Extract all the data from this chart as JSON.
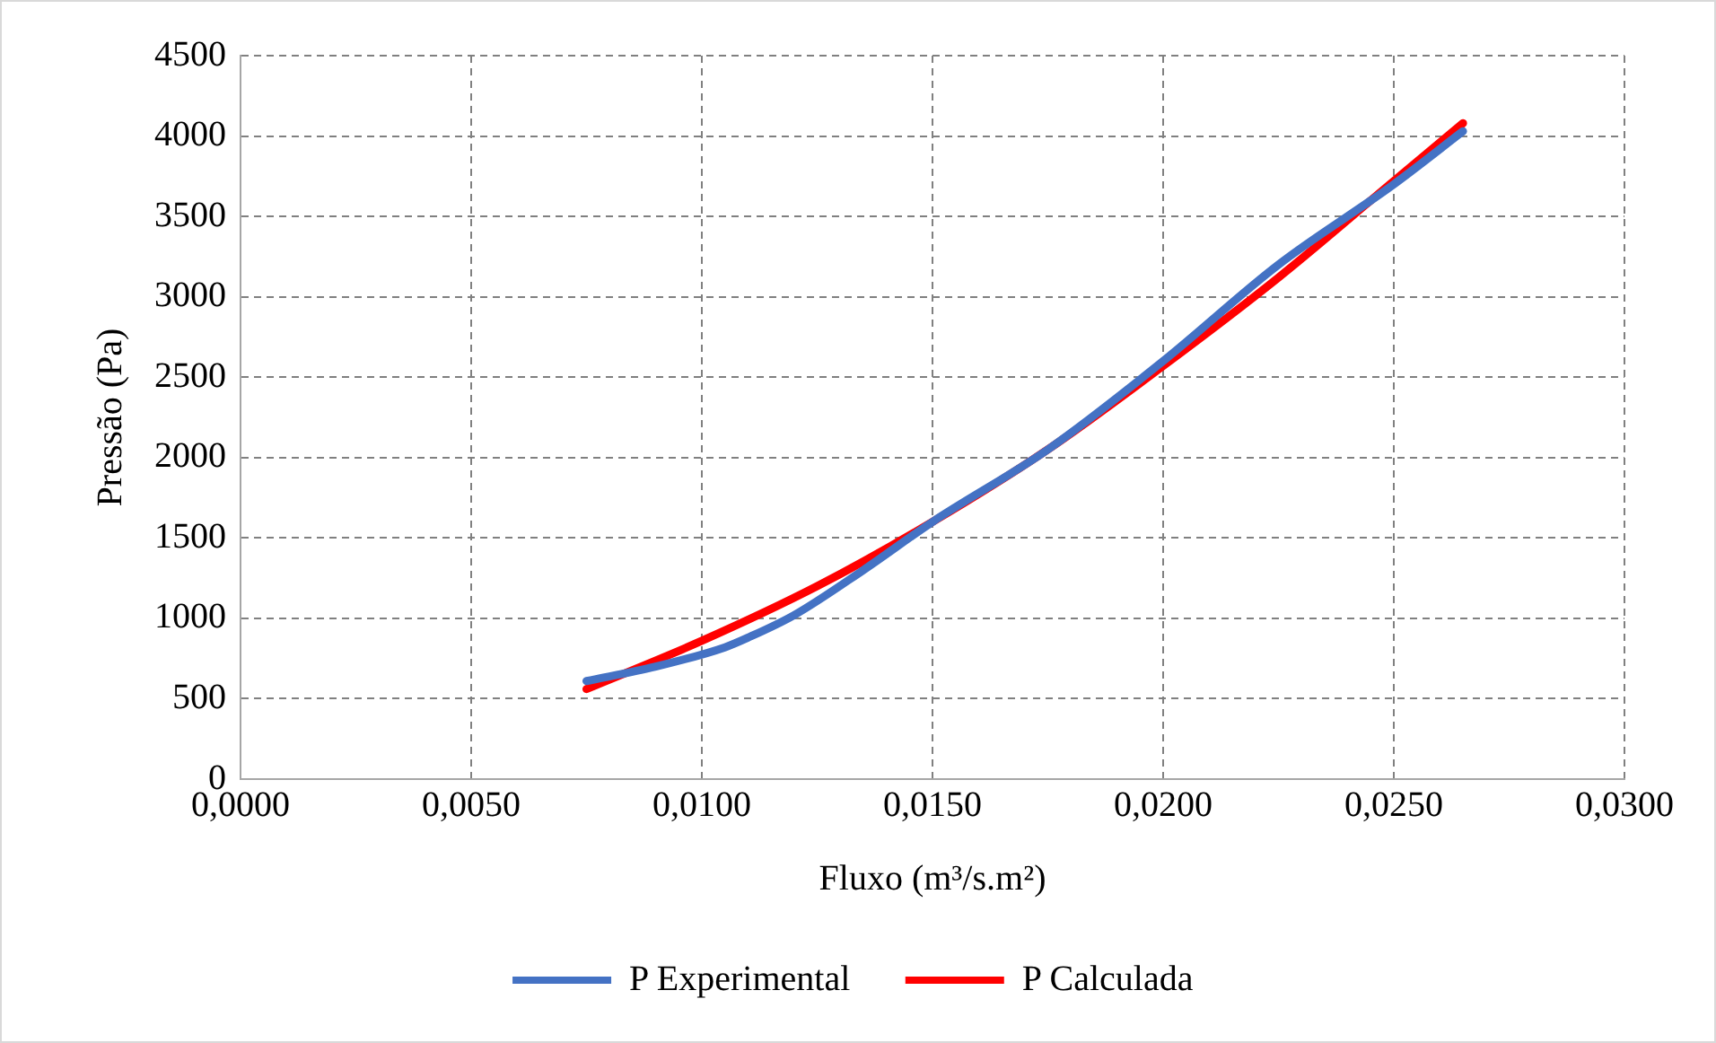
{
  "chart_data": {
    "type": "line",
    "xlabel": "Fluxo (m³/s.m²)",
    "ylabel": "Pressão (Pa)",
    "xlim": [
      0,
      0.03
    ],
    "xticks": [
      {
        "value": 0,
        "label": "0,0000"
      },
      {
        "value": 0.005,
        "label": "0,0050"
      },
      {
        "value": 0.01,
        "label": "0,0100"
      },
      {
        "value": 0.015,
        "label": "0,0150"
      },
      {
        "value": 0.02,
        "label": "0,0200"
      },
      {
        "value": 0.025,
        "label": "0,0250"
      },
      {
        "value": 0.03,
        "label": "0,0300"
      }
    ],
    "ylim": [
      0,
      4500
    ],
    "yticks": [
      0,
      500,
      1000,
      1500,
      2000,
      2500,
      3000,
      3500,
      4000,
      4500
    ],
    "grid": true,
    "legend": "bottom",
    "marker": "none",
    "line_style": "solid",
    "series": [
      {
        "name": "P Experimental",
        "color": "#4472c4",
        "x": [
          0.0075,
          0.009,
          0.0105,
          0.011,
          0.012,
          0.0135,
          0.015,
          0.0175,
          0.02,
          0.0225,
          0.025,
          0.0265
        ],
        "values": [
          610,
          700,
          820,
          880,
          1020,
          1300,
          1600,
          2050,
          2600,
          3200,
          3700,
          4030
        ]
      },
      {
        "name": "P Calculada",
        "color": "#ff0000",
        "x": [
          0.0075,
          0.01,
          0.0125,
          0.015,
          0.0175,
          0.02,
          0.0225,
          0.025,
          0.0265
        ],
        "values": [
          560,
          860,
          1200,
          1600,
          2050,
          2570,
          3120,
          3720,
          4080
        ]
      }
    ]
  }
}
